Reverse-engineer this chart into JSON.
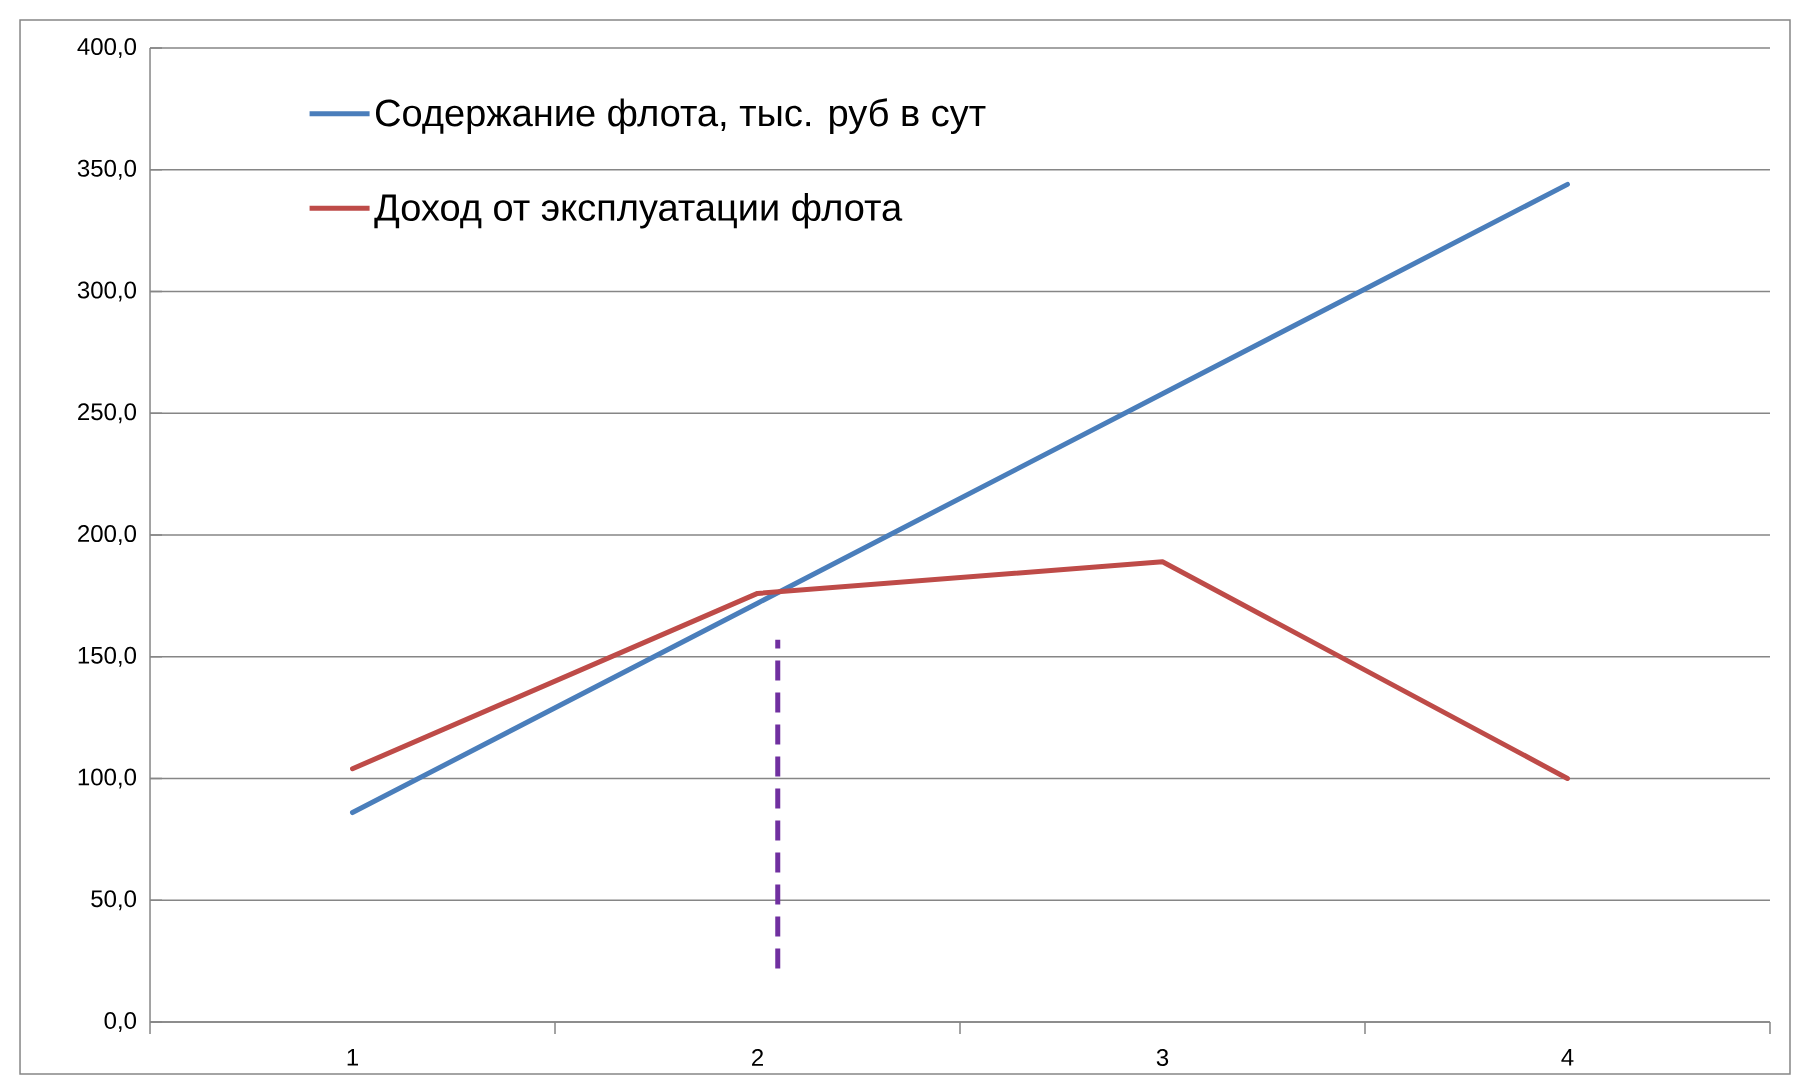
{
  "chart_data": {
    "type": "line",
    "x": [
      1,
      2,
      3,
      4
    ],
    "series": [
      {
        "name": "Содержание флота, тыс. руб в сут",
        "color": "#4a7ebb",
        "values": [
          86,
          172,
          258,
          344
        ]
      },
      {
        "name": "Доход от эксплуатации флота",
        "color": "#be4b48",
        "values": [
          104,
          176,
          189,
          100
        ]
      },
      {
        "type": "line",
        "x": [
          2.05,
          2.05
        ],
        "values": [
          22,
          157
        ],
        "color": "#7030a0",
        "line_style": "dashed"
      }
    ],
    "xlim": [
      0.5,
      4.5
    ],
    "xticks": [
      {
        "value": 0.5,
        "label": null
      },
      1,
      {
        "value": 1.5,
        "label": null
      },
      2,
      {
        "value": 2.5,
        "label": null
      },
      3,
      {
        "value": 3.5,
        "label": null
      },
      4,
      {
        "value": 4.5,
        "label": null
      }
    ],
    "ylim": [
      0,
      400
    ],
    "yticks": [
      {
        "value": 0,
        "label": "0,0"
      },
      {
        "value": 50,
        "label": "50,0"
      },
      {
        "value": 100,
        "label": "100,0"
      },
      {
        "value": 150,
        "label": "150,0"
      },
      {
        "value": 200,
        "label": "200,0"
      },
      {
        "value": 250,
        "label": "250,0"
      },
      {
        "value": 300,
        "label": "300,0"
      },
      {
        "value": 350,
        "label": "350,0"
      },
      {
        "value": 400,
        "label": "400,0"
      }
    ],
    "grid": "y",
    "legend": "top left"
  }
}
